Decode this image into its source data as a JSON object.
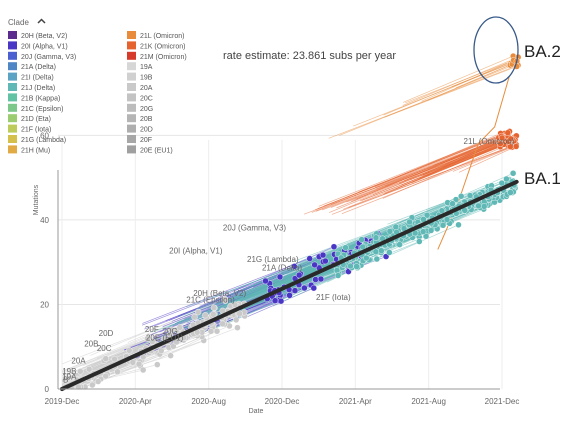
{
  "chart_data": {
    "type": "scatter",
    "xlabel": "Date",
    "ylabel": "Mutations",
    "x_ticks": [
      "2019-Dec",
      "2020-Apr",
      "2020-Aug",
      "2020-Dec",
      "2021-Apr",
      "2021-Aug",
      "2021-Dec"
    ],
    "ylim": [
      0,
      65
    ],
    "y_ticks": [
      0,
      20,
      40,
      60
    ],
    "grid": true,
    "rate_estimate": "rate estimate: 23.861 subs per year",
    "trend_line": {
      "from": [
        0,
        0
      ],
      "to": [
        24.8,
        49
      ]
    },
    "legend": {
      "title": "Clade",
      "collapse_icon": "chevron-up-icon",
      "columns": [
        [
          {
            "label": "20H (Beta, V2)",
            "color": "#5b2c8e"
          },
          {
            "label": "20I (Alpha, V1)",
            "color": "#4a36c4"
          },
          {
            "label": "20J (Gamma, V3)",
            "color": "#4a5fd0"
          },
          {
            "label": "21A (Delta)",
            "color": "#4f86c6"
          },
          {
            "label": "21I (Delta)",
            "color": "#5aa3c4"
          },
          {
            "label": "21J (Delta)",
            "color": "#5fb8b5"
          },
          {
            "label": "21B (Kappa)",
            "color": "#62c2a4"
          },
          {
            "label": "21C (Epsilon)",
            "color": "#7cc78a"
          },
          {
            "label": "21D (Eta)",
            "color": "#9bcc70"
          },
          {
            "label": "21F (Iota)",
            "color": "#bccb5a"
          },
          {
            "label": "21G (Lambda)",
            "color": "#d6c04c"
          },
          {
            "label": "21H (Mu)",
            "color": "#e2aa44"
          }
        ],
        [
          {
            "label": "21L (Omicron)",
            "color": "#e88c3c"
          },
          {
            "label": "21K (Omicron)",
            "color": "#e5632e"
          },
          {
            "label": "21M (Omicron)",
            "color": "#d63a2a"
          },
          {
            "label": "19A",
            "color": "#d6d6d6"
          },
          {
            "label": "19B",
            "color": "#d0d0d0"
          },
          {
            "label": "20A",
            "color": "#c9c9c9"
          },
          {
            "label": "20C",
            "color": "#c3c3c3"
          },
          {
            "label": "20G",
            "color": "#bcbcbc"
          },
          {
            "label": "20B",
            "color": "#b5b5b5"
          },
          {
            "label": "20D",
            "color": "#aeaeae"
          },
          {
            "label": "20F",
            "color": "#a7a7a7"
          },
          {
            "label": "20E (EU1)",
            "color": "#a0a0a0"
          }
        ]
      ]
    },
    "clade_labels": [
      {
        "text": "21L (Omicron)",
        "x": 21.9,
        "y": 58,
        "anchor": "start"
      },
      {
        "text": "20J (Gamma, V3)",
        "x": 10.5,
        "y": 37.5,
        "anchor": "middle"
      },
      {
        "text": "20I (Alpha, V1)",
        "x": 7.3,
        "y": 32,
        "anchor": "middle"
      },
      {
        "text": "21G (Lambda)",
        "x": 11.5,
        "y": 30,
        "anchor": "middle"
      },
      {
        "text": "21A (Delta)",
        "x": 12.0,
        "y": 28,
        "anchor": "middle"
      },
      {
        "text": "20H (Beta, V2)",
        "x": 8.6,
        "y": 22,
        "anchor": "middle"
      },
      {
        "text": "21C (Epsilon)",
        "x": 8.1,
        "y": 20.5,
        "anchor": "middle"
      },
      {
        "text": "21F (Iota)",
        "x": 14.8,
        "y": 21,
        "anchor": "middle"
      },
      {
        "text": "20G",
        "x": 5.9,
        "y": 13,
        "anchor": "middle"
      },
      {
        "text": "20F",
        "x": 4.9,
        "y": 13.5,
        "anchor": "middle"
      },
      {
        "text": "20E (EU1)",
        "x": 5.6,
        "y": 11.5,
        "anchor": "middle"
      },
      {
        "text": "20D",
        "x": 2.4,
        "y": 12.5,
        "anchor": "middle"
      },
      {
        "text": "20B",
        "x": 1.6,
        "y": 10,
        "anchor": "middle"
      },
      {
        "text": "20C",
        "x": 2.3,
        "y": 9,
        "anchor": "middle"
      },
      {
        "text": "20A",
        "x": 0.9,
        "y": 6,
        "anchor": "middle"
      },
      {
        "text": "19B",
        "x": 0.4,
        "y": 3.5,
        "anchor": "middle"
      },
      {
        "text": "19A",
        "x": 0.4,
        "y": 2.2,
        "anchor": "middle"
      },
      {
        "text": "B",
        "x": 0.2,
        "y": 1.5,
        "anchor": "middle"
      }
    ],
    "clusters": [
      {
        "name": "20A",
        "color": "#c9c9c9",
        "x_range": [
          0.5,
          10
        ],
        "y_center_slope": 1.9,
        "spread": 5,
        "count": 140
      },
      {
        "name": "20I (Alpha, V1)",
        "color": "#4a36c4",
        "x_range": [
          11,
          18
        ],
        "y_center_slope": 2.0,
        "spread": 5,
        "count": 70
      },
      {
        "name": "21J (Delta)",
        "color": "#5fb8b5",
        "x_range": [
          15,
          24.8
        ],
        "y_center_slope": 1.95,
        "spread": 4,
        "count": 260
      },
      {
        "name": "21K (Omicron)",
        "color": "#e5632e",
        "x_range": [
          23.8,
          24.8
        ],
        "y_center": 59,
        "spread": 2.5,
        "count": 50
      },
      {
        "name": "21L (Omicron)",
        "color": "#e88c3c",
        "x_range": [
          24.4,
          24.9
        ],
        "y_center": 77,
        "spread": 3,
        "count": 12
      }
    ],
    "highlights": [
      {
        "label": "BA.2",
        "x": 24.6,
        "y": 77,
        "circled": true
      },
      {
        "label": "BA.1",
        "x": 24.4,
        "y": 59,
        "circled": false
      }
    ]
  }
}
